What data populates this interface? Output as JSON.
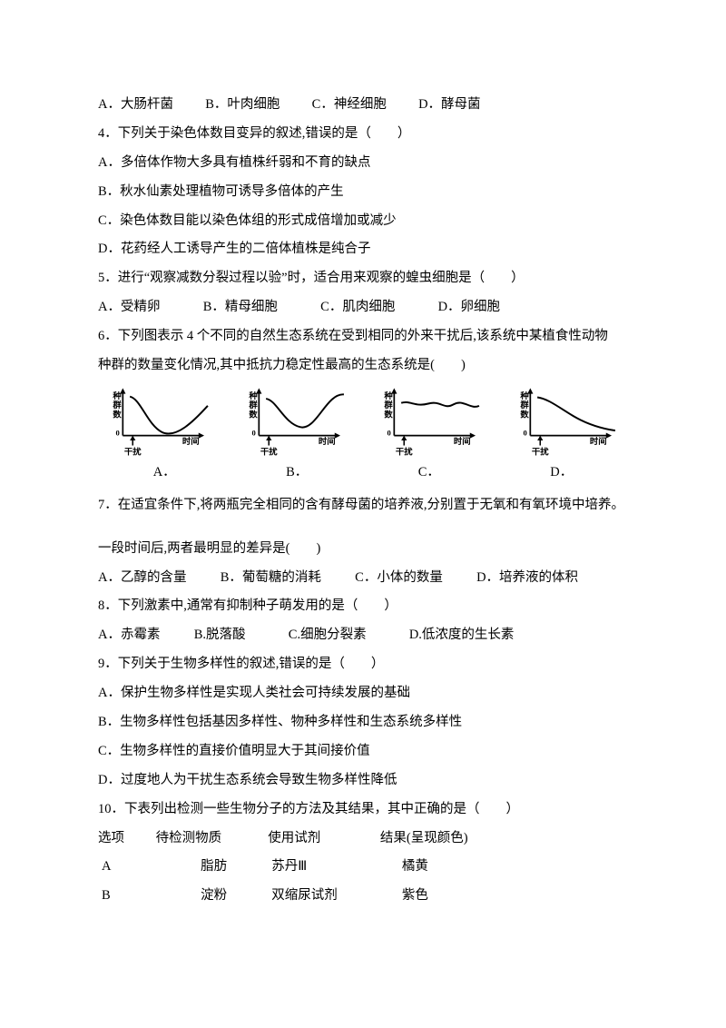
{
  "q3_options": {
    "a": "A．大肠杆菌",
    "b": "B．叶肉细胞",
    "c": "C．神经细胞",
    "d": "D．酵母菌"
  },
  "q4": {
    "stem": "4．下列关于染色体数目变异的叙述,错误的是（　　）",
    "a": "A．多倍体作物大多具有植株纤弱和不育的缺点",
    "b": "B．秋水仙素处理植物可诱导多倍体的产生",
    "c": "C．染色体数目能以染色体组的形式成倍增加或减少",
    "d": "D．花药经人工诱导产生的二倍体植株是纯合子"
  },
  "q5": {
    "stem": "5．进行“观察减数分裂过程以验”时，适合用来观察的蝗虫细胞是（　　）",
    "a": "A．受精卵",
    "b": "B．精母细胞",
    "c": "C．肌肉细胞",
    "d": "D．卵细胞"
  },
  "q6": {
    "stem1": "6．下列图表示 4 个不同的自然生态系统在受到相同的外来干扰后,该系统中某植食性动物",
    "stem2": "种群的数量变化情况,其中抵抗力稳定性最高的生态系统是(　　)",
    "chart": {
      "y_label_lines": [
        "种",
        "群",
        "数"
      ],
      "x_label": "时间",
      "disturb_label": "干扰",
      "axis_color": "#000000",
      "curve_color": "#000000",
      "curves": [
        "M10 15 C 25 18, 35 55, 55 65 S 100 50, 120 28",
        "M10 18 C 25 20, 35 52, 58 58 S 95 10, 120 12",
        "M10 24 C 22 20, 30 30, 48 25 S 70 34, 84 26 S 108 34, 120 28",
        "M10 16 C 25 18, 40 30, 60 42 S 100 60, 120 63"
      ]
    },
    "labels": {
      "a": "A．",
      "b": "B．",
      "c": "C．",
      "d": "D．"
    }
  },
  "q7": {
    "stem": "7．在适宜条件下,将两瓶完全相同的含有酵母菌的培养液,分别置于无氧和有氧环境中培养。",
    "stem2": "一段时间后,两者最明显的差异是(　　)",
    "a": "A．乙醇的含量",
    "b": "B．葡萄糖的消耗",
    "c": "C．小体的数量",
    "d": "D．培养液的体积"
  },
  "q8": {
    "stem": "8．下列激素中,通常有抑制种子萌发用的是（　　）",
    "a": "A．赤霉素",
    "b": "B.脱落酸",
    "c": "C.细胞分裂素",
    "d": "D.低浓度的生长素"
  },
  "q9": {
    "stem": "9．下列关于生物多样性的叙述,错误的是（　　）",
    "a": "A．保护生物多样性是实现人类社会可持续发展的基础",
    "b": "B．生物多样性包括基因多样性、物种多样性和生态系统多样性",
    "c": "C．生物多样性的直接价值明显大于其间接价值",
    "d": "D．过度地人为干扰生态系统会导致生物多样性降低"
  },
  "q10": {
    "stem": "10．下表列出检测一些生物分子的方法及其结果，其中正确的是（　　）",
    "header": {
      "c0": "选项",
      "c1": "待检测物质",
      "c2": "使用试剂",
      "c3": "结果(呈现颜色)"
    },
    "rows": [
      {
        "c0": "A",
        "c1": "脂肪",
        "c2": "苏丹Ⅲ",
        "c3": "橘黄"
      },
      {
        "c0": "B",
        "c1": "淀粉",
        "c2": "双缩尿试剂",
        "c3": "紫色"
      }
    ]
  }
}
